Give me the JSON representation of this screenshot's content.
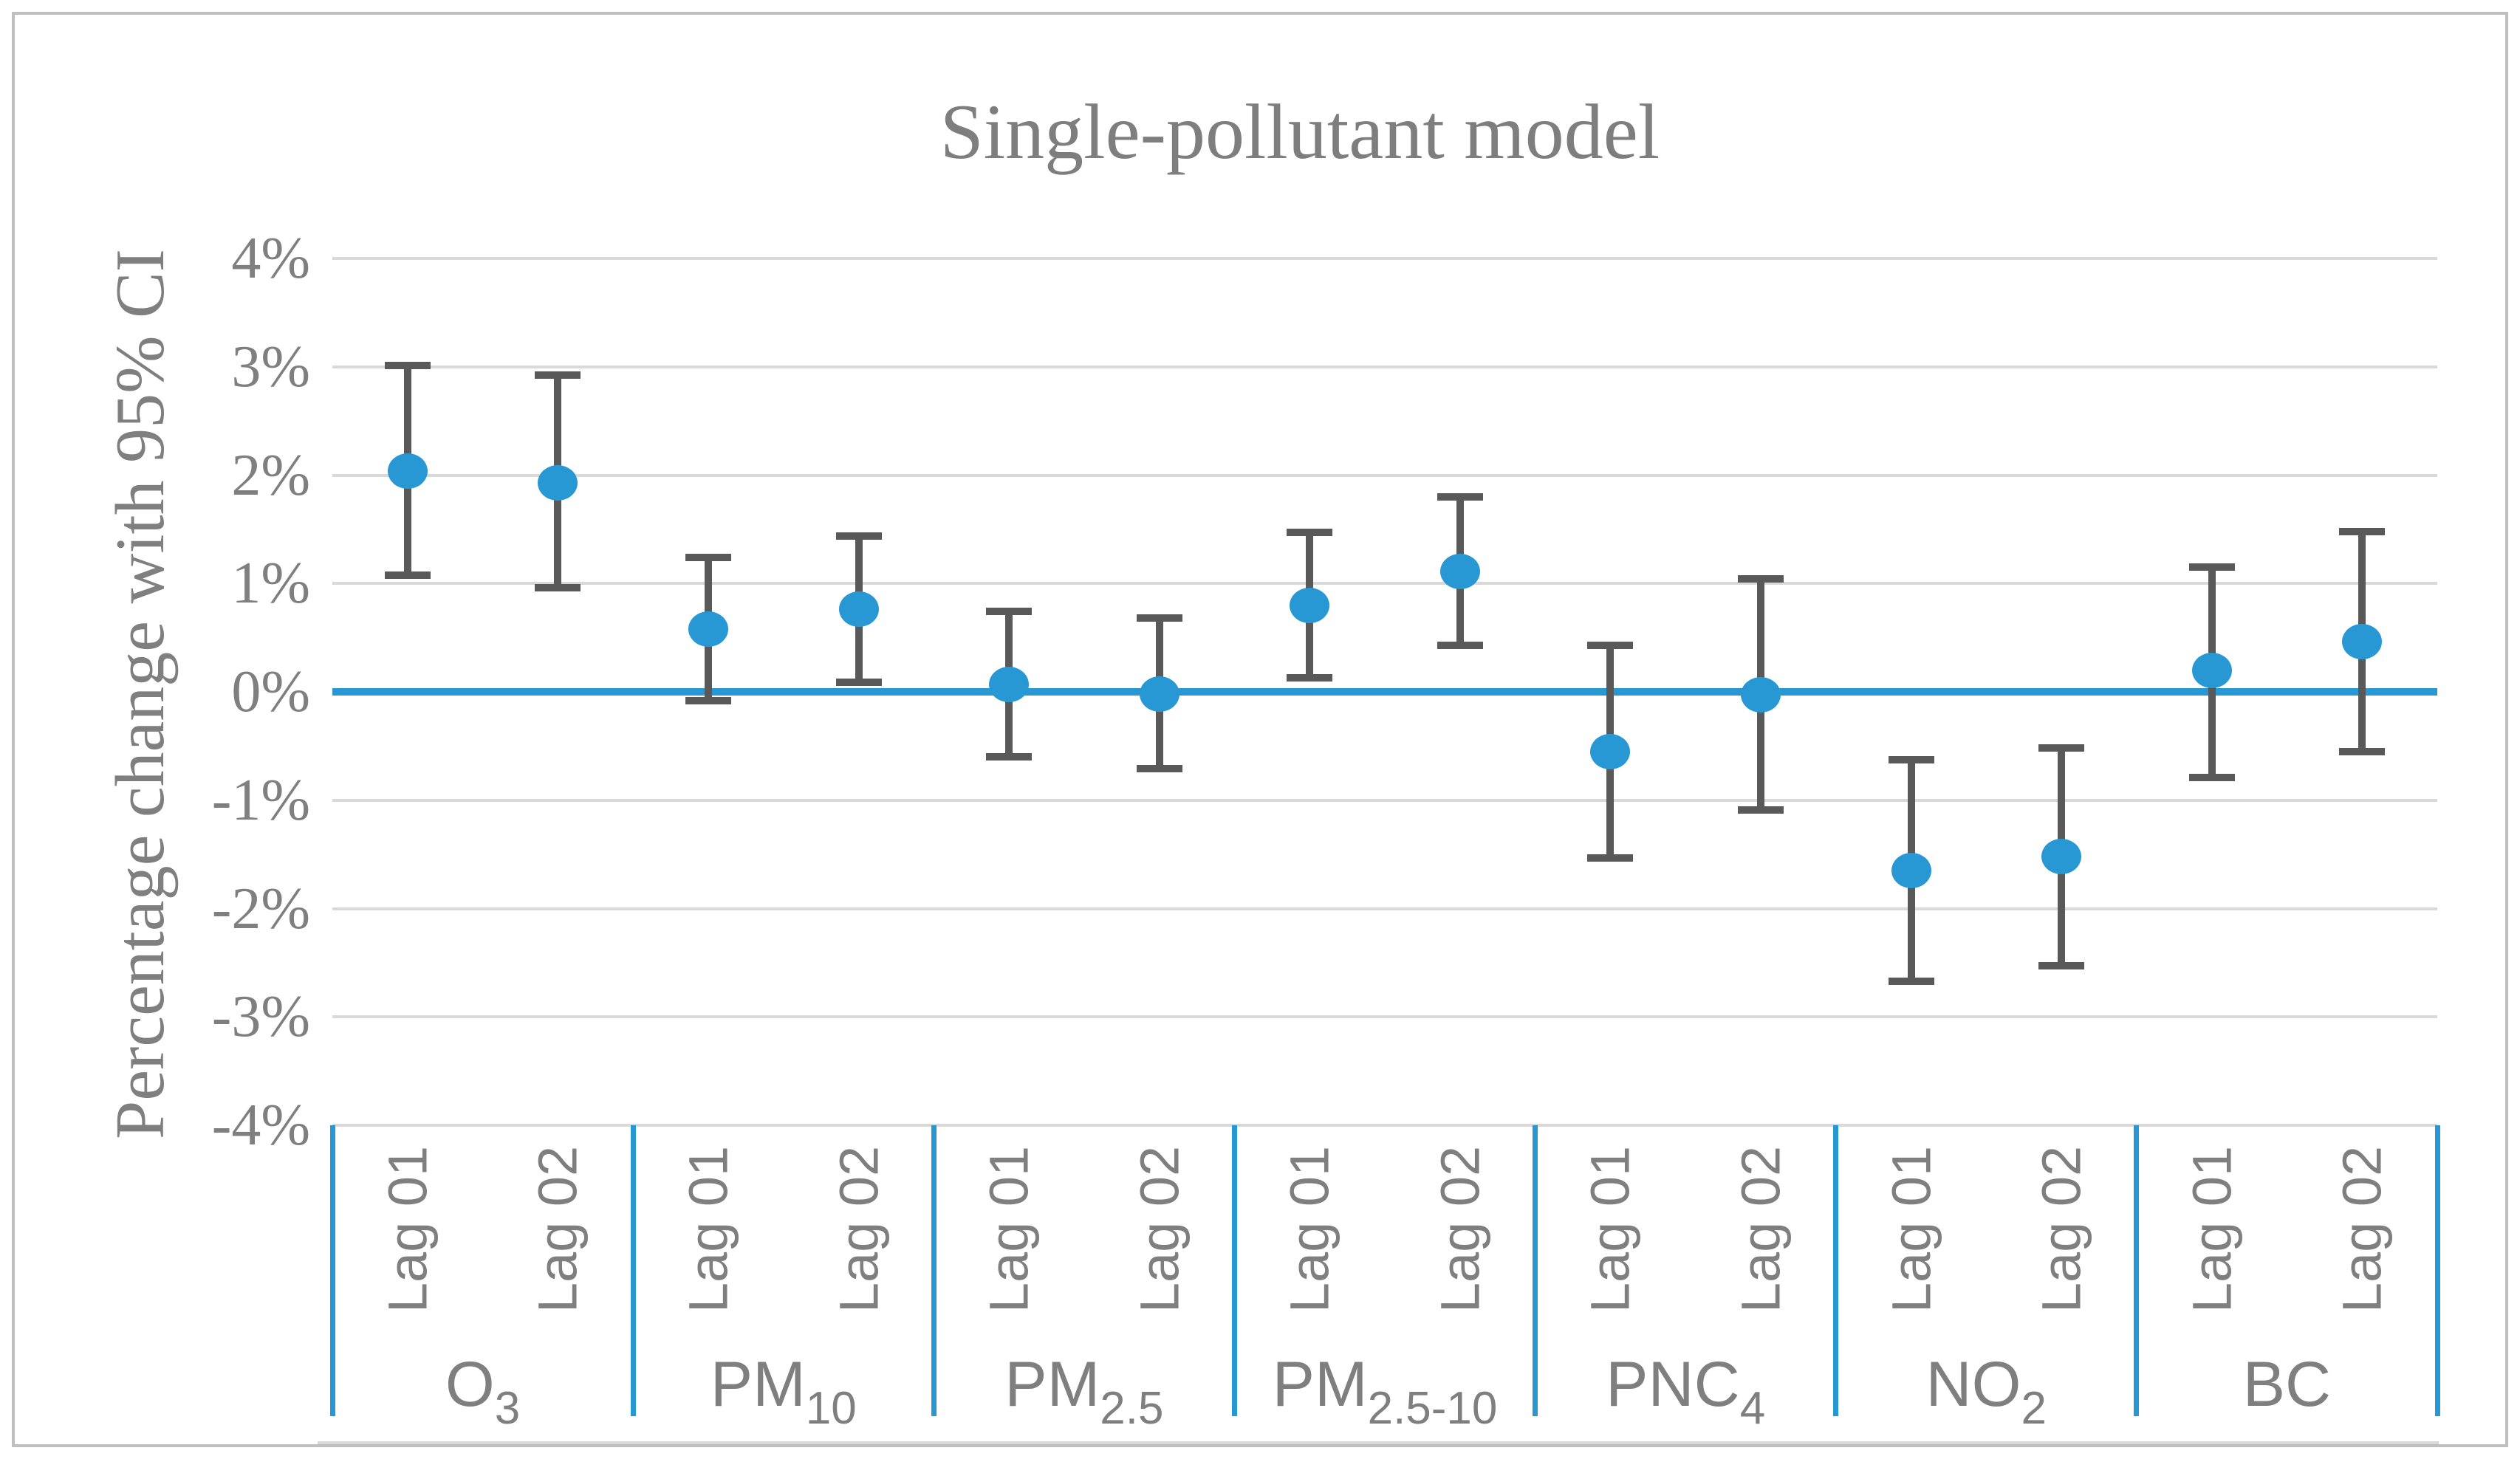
{
  "figure": {
    "title": "Single-pollutant model",
    "y_axis_title": "Percentage change with 95% CI"
  },
  "colors": {
    "accent_blue": "#2898d4",
    "whisker_grey": "#595959",
    "gridline_grey": "#d9d9d9",
    "text_grey": "#7f7f7f",
    "frame_grey": "#bfbfbf",
    "background": "#ffffff"
  },
  "chart_data": {
    "type": "scatter",
    "title": "Single-pollutant model",
    "ylabel": "Percentage change with 95% CI",
    "xlabel": "",
    "ylim": [
      -4,
      4
    ],
    "ytick_step": 1,
    "ytick_labels": [
      "4%",
      "3%",
      "2%",
      "1%",
      "0%",
      "-1%",
      "-2%",
      "-3%",
      "-4%"
    ],
    "grid": true,
    "zero_line": true,
    "legend": "none",
    "lag_labels": [
      "Lag 01",
      "Lag 02"
    ],
    "categories": [
      {
        "name": "O3",
        "base": "O",
        "sub": "3"
      },
      {
        "name": "PM10",
        "base": "PM",
        "sub": "10"
      },
      {
        "name": "PM2.5",
        "base": "PM",
        "sub": "2.5"
      },
      {
        "name": "PM2.5-10",
        "base": "PM",
        "sub": "2.5-10"
      },
      {
        "name": "PNC4",
        "base": "PNC",
        "sub": "4"
      },
      {
        "name": "NO2",
        "base": "NO",
        "sub": "2"
      },
      {
        "name": "BC",
        "base": "BC",
        "sub": ""
      }
    ],
    "series": [
      {
        "category": "O3",
        "lag": "Lag 01",
        "value": 2.04,
        "ci_low": 1.08,
        "ci_high": 3.01
      },
      {
        "category": "O3",
        "lag": "Lag 02",
        "value": 1.93,
        "ci_low": 0.96,
        "ci_high": 2.92
      },
      {
        "category": "PM10",
        "lag": "Lag 01",
        "value": 0.58,
        "ci_low": -0.08,
        "ci_high": 1.24
      },
      {
        "category": "PM10",
        "lag": "Lag 02",
        "value": 0.76,
        "ci_low": 0.09,
        "ci_high": 1.44
      },
      {
        "category": "PM2.5",
        "lag": "Lag 01",
        "value": 0.07,
        "ci_low": -0.6,
        "ci_high": 0.74
      },
      {
        "category": "PM2.5",
        "lag": "Lag 02",
        "value": -0.02,
        "ci_low": -0.71,
        "ci_high": 0.68
      },
      {
        "category": "PM2.5-10",
        "lag": "Lag 01",
        "value": 0.8,
        "ci_low": 0.13,
        "ci_high": 1.47
      },
      {
        "category": "PM2.5-10",
        "lag": "Lag 02",
        "value": 1.11,
        "ci_low": 0.43,
        "ci_high": 1.8
      },
      {
        "category": "PNC4",
        "lag": "Lag 01",
        "value": -0.55,
        "ci_low": -1.53,
        "ci_high": 0.43
      },
      {
        "category": "PNC4",
        "lag": "Lag 02",
        "value": -0.03,
        "ci_low": -1.09,
        "ci_high": 1.04
      },
      {
        "category": "NO2",
        "lag": "Lag 01",
        "value": -1.65,
        "ci_low": -2.67,
        "ci_high": -0.63
      },
      {
        "category": "NO2",
        "lag": "Lag 02",
        "value": -1.52,
        "ci_low": -2.53,
        "ci_high": -0.52
      },
      {
        "category": "BC",
        "lag": "Lag 01",
        "value": 0.2,
        "ci_low": -0.79,
        "ci_high": 1.15
      },
      {
        "category": "BC",
        "lag": "Lag 02",
        "value": 0.46,
        "ci_low": -0.55,
        "ci_high": 1.48
      }
    ]
  }
}
